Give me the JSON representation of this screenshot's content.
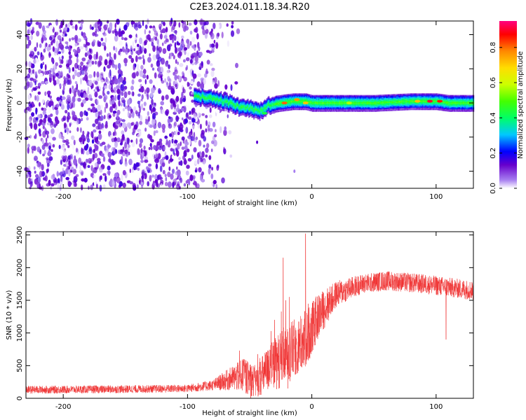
{
  "title": "C2E3.2024.011.18.34.R20",
  "chart_data": [
    {
      "type": "heatmap",
      "xlabel": "Height of straight line (km)",
      "ylabel": "Frequency (Hz)",
      "xlim": [
        -230,
        130
      ],
      "ylim": [
        -50,
        48
      ],
      "xticks": [
        -200,
        -100,
        0,
        100
      ],
      "yticks": [
        -40,
        -20,
        0,
        20,
        40
      ],
      "colorbar": {
        "label": "Normalized spectral amplitude",
        "range": [
          0,
          0.95
        ],
        "ticks": [
          "0.0",
          "0.2",
          "0.4",
          "0.6",
          "0.8"
        ]
      },
      "noise_region": {
        "x_range": [
          -230,
          -58
        ],
        "dense_until": -100
      },
      "signal_band": {
        "x": [
          -95,
          -80,
          -70,
          -60,
          -50,
          -42,
          -35,
          -25,
          -15,
          -5,
          0,
          20,
          50,
          80,
          90,
          100,
          110,
          130
        ],
        "center": [
          4,
          3,
          1,
          -2,
          -3,
          -5,
          -1,
          0,
          1,
          1,
          0,
          0,
          0,
          1,
          1,
          1,
          0,
          0
        ],
        "halfwidth": 3
      },
      "hot_spots": [
        {
          "x": -38,
          "y": -6,
          "level": 0.45
        },
        {
          "x": -22,
          "y": 0,
          "level": 0.85
        },
        {
          "x": -12,
          "y": 2,
          "level": 0.8
        },
        {
          "x": -5,
          "y": 0,
          "level": 0.75
        },
        {
          "x": 30,
          "y": 0,
          "level": 0.6
        },
        {
          "x": 85,
          "y": 1,
          "level": 0.75
        },
        {
          "x": 95,
          "y": 1,
          "level": 0.95
        },
        {
          "x": 103,
          "y": 1,
          "level": 0.9
        }
      ],
      "isolated_points": [
        {
          "x": -44,
          "y": -23,
          "level": 0.15
        },
        {
          "x": -14,
          "y": -40,
          "level": 0.05
        }
      ]
    },
    {
      "type": "line",
      "xlabel": "Height of straight line (km)",
      "ylabel": "SNR (10 * v/v)",
      "xlim": [
        -230,
        130
      ],
      "ylim": [
        0,
        2550
      ],
      "xticks": [
        -200,
        -100,
        0,
        100
      ],
      "yticks": [
        0,
        500,
        1000,
        1500,
        2000,
        2500
      ],
      "color": "#f03232",
      "envelope": {
        "x": [
          -230,
          -150,
          -100,
          -80,
          -65,
          -55,
          -45,
          -35,
          -25,
          -15,
          -5,
          5,
          20,
          40,
          60,
          90,
          110,
          130
        ],
        "mean": [
          130,
          140,
          150,
          200,
          300,
          350,
          250,
          450,
          600,
          750,
          900,
          1250,
          1600,
          1750,
          1800,
          1750,
          1700,
          1650
        ],
        "spread": [
          60,
          60,
          60,
          80,
          180,
          260,
          250,
          350,
          450,
          450,
          450,
          350,
          200,
          150,
          150,
          150,
          150,
          150
        ]
      },
      "spikes": [
        {
          "x": -55,
          "y": 600
        },
        {
          "x": -30,
          "y": 1200
        },
        {
          "x": -23,
          "y": 2150
        },
        {
          "x": -21,
          "y": 1500
        },
        {
          "x": -18,
          "y": 1550
        },
        {
          "x": -5,
          "y": 2520
        },
        {
          "x": 108,
          "y": 900
        }
      ]
    }
  ]
}
